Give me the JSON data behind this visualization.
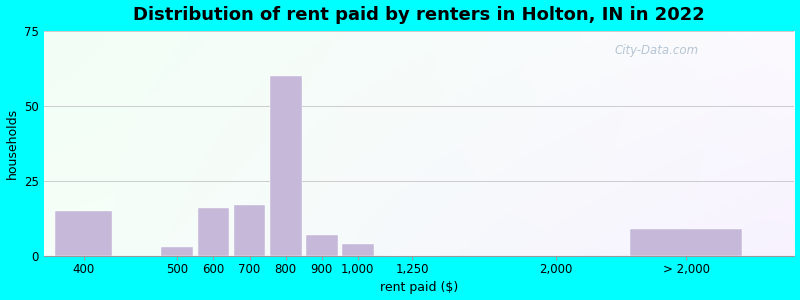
{
  "title": "Distribution of rent paid by renters in Holton, IN in 2022",
  "xlabel": "rent paid ($)",
  "ylabel": "households",
  "bar_labels": [
    "400",
    "500",
    "600",
    "700",
    "800",
    "900",
    "1,000",
    "1,250",
    "2,000",
    "> 2,000"
  ],
  "bar_values": [
    15,
    3,
    16,
    17,
    60,
    7,
    4,
    0,
    0,
    9
  ],
  "bar_color": "#c5b8d8",
  "ylim": [
    0,
    75
  ],
  "yticks": [
    0,
    25,
    50,
    75
  ],
  "background_outer": "#00ffff",
  "grid_color": "#cccccc",
  "title_fontsize": 13,
  "axis_label_fontsize": 9,
  "tick_fontsize": 8.5,
  "watermark_text": "City-Data.com",
  "x_positions": [
    0.45,
    1.75,
    2.25,
    2.75,
    3.25,
    3.75,
    4.25,
    5.0,
    7.0,
    8.8
  ],
  "bar_widths": [
    0.8,
    0.44,
    0.44,
    0.44,
    0.44,
    0.44,
    0.44,
    0.65,
    0.01,
    1.55
  ]
}
